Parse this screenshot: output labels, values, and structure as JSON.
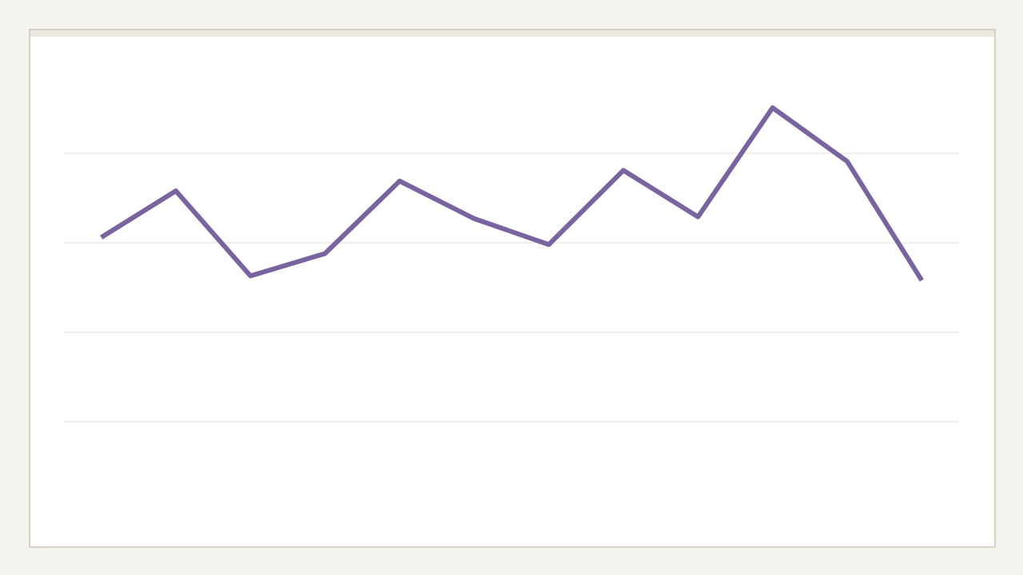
{
  "chart_data": {
    "type": "line",
    "values": [
      3.06,
      3.58,
      2.63,
      2.88,
      3.69,
      3.27,
      2.98,
      3.81,
      3.29,
      4.51,
      3.91,
      2.58
    ],
    "color": "#7a64a0",
    "ylim": [
      0,
      5
    ],
    "yticks": [
      1,
      2,
      3,
      4
    ],
    "grid": true
  }
}
